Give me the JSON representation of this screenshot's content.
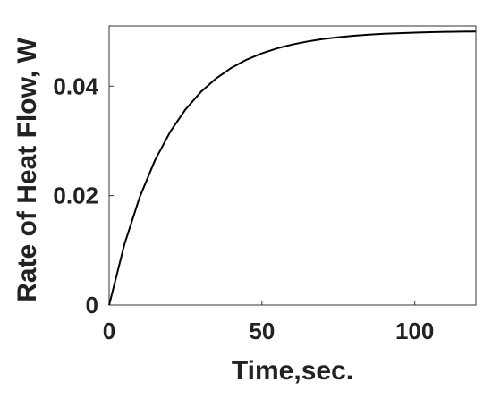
{
  "chart_data": {
    "type": "line",
    "title": "",
    "xlabel": "Time,sec.",
    "ylabel": "Rate of Heat Flow, W",
    "xlim": [
      0,
      120
    ],
    "ylim": [
      0,
      0.051
    ],
    "xticks": [
      0,
      50,
      100
    ],
    "xtick_labels": [
      "0",
      "50",
      "100"
    ],
    "yticks": [
      0,
      0.02,
      0.04
    ],
    "ytick_labels": [
      "0",
      "0.02",
      "0.04"
    ],
    "grid": false,
    "legend": "none",
    "series": [
      {
        "line_color": "#000000",
        "x": [
          0,
          5,
          10,
          15,
          20,
          25,
          30,
          35,
          40,
          45,
          50,
          55,
          60,
          65,
          70,
          75,
          80,
          85,
          90,
          95,
          100,
          105,
          110,
          115,
          120
        ],
        "y": [
          0,
          0.01108,
          0.01972,
          0.02645,
          0.03168,
          0.03576,
          0.03894,
          0.04141,
          0.04334,
          0.04484,
          0.046,
          0.04691,
          0.04762,
          0.04817,
          0.04861,
          0.04894,
          0.0492,
          0.0494,
          0.04956,
          0.04968,
          0.04978,
          0.04985,
          0.04991,
          0.04995,
          0.04998
        ]
      }
    ]
  }
}
